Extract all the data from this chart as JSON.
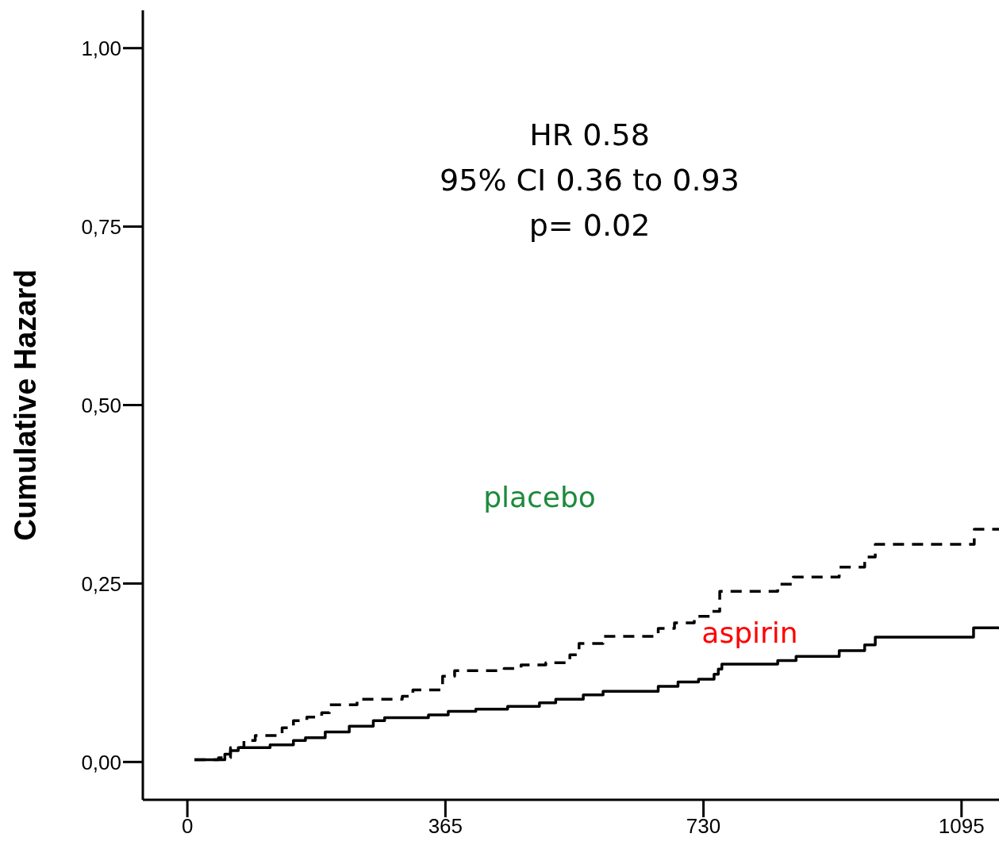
{
  "chart_data": {
    "type": "step",
    "ylabel": "Cumulative Hazard",
    "xlim": [
      -63,
      1148
    ],
    "xticks": [
      0,
      365,
      730,
      1095
    ],
    "ylim": [
      -0.053,
      1.053
    ],
    "yticks": [
      {
        "value": 0,
        "label": "0,00"
      },
      {
        "value": 0.25,
        "label": "0,25"
      },
      {
        "value": 0.5,
        "label": "0,50"
      },
      {
        "value": 0.75,
        "label": "0,75"
      },
      {
        "value": 1,
        "label": "1,00"
      }
    ],
    "marker": "none",
    "series": [
      {
        "color": "#000000",
        "line_style": "dashed",
        "x": [
          10,
          44,
          61,
          80,
          96,
          134,
          150,
          169,
          190,
          201,
          240,
          304,
          319,
          361,
          378,
          448,
          472,
          507,
          541,
          554,
          588,
          666,
          689,
          717,
          742,
          753,
          835,
          857,
          922,
          958,
          973,
          1113,
          1148
        ],
        "values": [
          0.003,
          0.006,
          0.02,
          0.03,
          0.037,
          0.048,
          0.058,
          0.063,
          0.069,
          0.08,
          0.088,
          0.092,
          0.101,
          0.12,
          0.128,
          0.131,
          0.136,
          0.139,
          0.15,
          0.166,
          0.176,
          0.187,
          0.195,
          0.204,
          0.211,
          0.239,
          0.249,
          0.259,
          0.273,
          0.287,
          0.305,
          0.326,
          0.326
        ]
      },
      {
        "color": "#000000",
        "line_style": "solid",
        "x": [
          10,
          53,
          61,
          72,
          117,
          150,
          167,
          195,
          229,
          263,
          279,
          341,
          369,
          408,
          453,
          498,
          521,
          560,
          588,
          666,
          694,
          723,
          745,
          751,
          756,
          835,
          861,
          922,
          958,
          973,
          1112,
          1148
        ],
        "values": [
          0.003,
          0.011,
          0.016,
          0.02,
          0.024,
          0.03,
          0.034,
          0.042,
          0.05,
          0.058,
          0.062,
          0.066,
          0.071,
          0.074,
          0.078,
          0.083,
          0.088,
          0.094,
          0.099,
          0.106,
          0.112,
          0.116,
          0.123,
          0.13,
          0.137,
          0.142,
          0.148,
          0.156,
          0.164,
          0.175,
          0.188,
          0.188
        ]
      }
    ],
    "annotations": [
      "HR 0.58",
      "95% CI 0.36 to 0.93",
      "p= 0.02",
      "placebo",
      "aspirin"
    ]
  }
}
